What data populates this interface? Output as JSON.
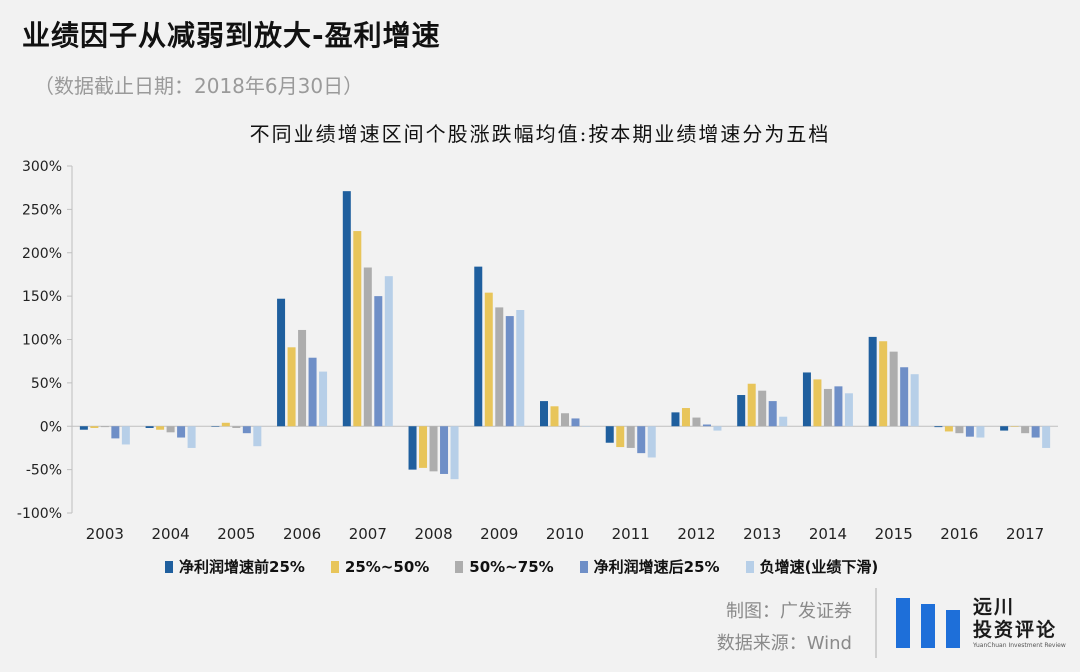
{
  "header": {
    "title": "业绩因子从减弱到放大-盈利增速",
    "subtitle": "（数据截止日期：2018年6月30日）"
  },
  "chart_data": {
    "type": "bar",
    "title": "不同业绩增速区间个股涨跌幅均值:按本期业绩增速分为五档",
    "xlabel": "",
    "ylabel": "",
    "ylim": [
      -100,
      300
    ],
    "yticks": [
      -100,
      -50,
      0,
      50,
      100,
      150,
      200,
      250,
      300
    ],
    "ytick_labels": [
      "-100%",
      "-50%",
      "0%",
      "50%",
      "100%",
      "150%",
      "200%",
      "250%",
      "300%"
    ],
    "categories": [
      "2003",
      "2004",
      "2005",
      "2006",
      "2007",
      "2008",
      "2009",
      "2010",
      "2011",
      "2012",
      "2013",
      "2014",
      "2015",
      "2016",
      "2017"
    ],
    "series": [
      {
        "name": "净利润增速前25%",
        "color": "#1f5f9e",
        "values": [
          -4,
          -2,
          0,
          147,
          271,
          -50,
          184,
          29,
          -19,
          16,
          36,
          62,
          103,
          -1,
          -5
        ]
      },
      {
        "name": "25%~50%",
        "color": "#e8c55a",
        "values": [
          -2,
          -4,
          4,
          91,
          225,
          -48,
          154,
          23,
          -24,
          21,
          49,
          54,
          98,
          -6,
          0
        ]
      },
      {
        "name": "50%~75%",
        "color": "#adadad",
        "values": [
          -1,
          -7,
          -2,
          111,
          183,
          -52,
          137,
          15,
          -25,
          10,
          41,
          43,
          86,
          -8,
          -8
        ]
      },
      {
        "name": "净利润增速后25%",
        "color": "#6f8fc7",
        "values": [
          -14,
          -13,
          -8,
          79,
          150,
          -55,
          127,
          9,
          -31,
          2,
          29,
          46,
          68,
          -12,
          -13
        ]
      },
      {
        "name": "负增速(业绩下滑)",
        "color": "#b7cfe8",
        "values": [
          -21,
          -25,
          -23,
          63,
          173,
          -61,
          134,
          0,
          -36,
          -5,
          11,
          38,
          60,
          -13,
          -25
        ]
      }
    ],
    "legend_position": "bottom",
    "grid": false
  },
  "legend_labels": [
    "净利润增速前25%",
    "25%~50%",
    "50%~75%",
    "净利润增速后25%",
    "负增速(业绩下滑)"
  ],
  "footer": {
    "chart_credit": "制图：广发证券",
    "data_source": "数据来源：Wind",
    "logo_cn_line1": "远川",
    "logo_cn_line2": "投资评论",
    "logo_en": "YuanChuan Investment Review",
    "logo_color": "#1e6fd9"
  }
}
